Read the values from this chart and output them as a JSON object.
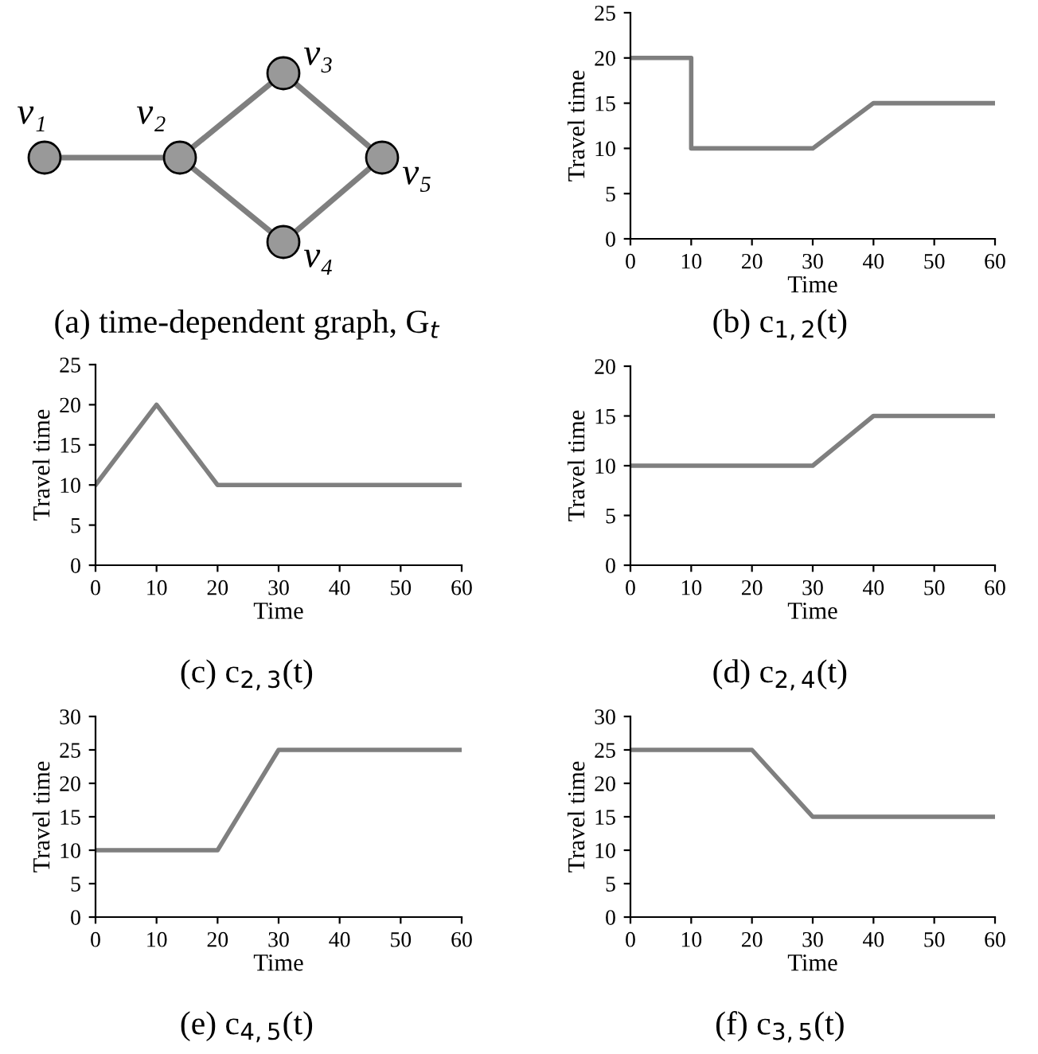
{
  "chart_data": [
    {
      "type": "other",
      "title": "(a) time-dependent graph, G$_{t}$",
      "annotations": [
        "v₁",
        "v₂",
        "v₃",
        "v₄",
        "v₅"
      ]
    },
    {
      "type": "line",
      "title": "(b) c$_{1,2}$(t)",
      "xlabel": "Time",
      "ylabel": "Travel time",
      "xlim": [
        0,
        60
      ],
      "xticks": [
        0,
        10,
        20,
        30,
        40,
        50,
        60
      ],
      "ylim": [
        0,
        25
      ],
      "yticks": [
        0,
        5,
        10,
        15,
        20,
        25
      ],
      "series": [
        {
          "color": "#7f7f7f",
          "x": [
            0,
            10,
            10,
            30,
            40,
            60
          ],
          "values": [
            20,
            20,
            10,
            10,
            15,
            15
          ]
        }
      ]
    },
    {
      "type": "line",
      "title": "(c) c$_{2,3}$(t)",
      "xlabel": "Time",
      "ylabel": "Travel time",
      "xlim": [
        0,
        60
      ],
      "xticks": [
        0,
        10,
        20,
        30,
        40,
        50,
        60
      ],
      "ylim": [
        0,
        25
      ],
      "yticks": [
        0,
        5,
        10,
        15,
        20,
        25
      ],
      "series": [
        {
          "color": "#7f7f7f",
          "x": [
            0,
            10,
            20,
            60
          ],
          "values": [
            10,
            20,
            10,
            10
          ]
        }
      ]
    },
    {
      "type": "line",
      "title": "(d) c$_{2,4}$(t)",
      "xlabel": "Time",
      "ylabel": "Travel time",
      "xlim": [
        0,
        60
      ],
      "xticks": [
        0,
        10,
        20,
        30,
        40,
        50,
        60
      ],
      "ylim": [
        0,
        20
      ],
      "yticks": [
        0,
        5,
        10,
        15,
        20
      ],
      "series": [
        {
          "color": "#7f7f7f",
          "x": [
            0,
            30,
            40,
            60
          ],
          "values": [
            10,
            10,
            15,
            15
          ]
        }
      ]
    },
    {
      "type": "line",
      "title": "(e) c$_{4,5}$(t)",
      "xlabel": "Time",
      "ylabel": "Travel time",
      "xlim": [
        0,
        60
      ],
      "xticks": [
        0,
        10,
        20,
        30,
        40,
        50,
        60
      ],
      "ylim": [
        0,
        30
      ],
      "yticks": [
        0,
        5,
        10,
        15,
        20,
        25,
        30
      ],
      "series": [
        {
          "color": "#7f7f7f",
          "x": [
            0,
            20,
            30,
            60
          ],
          "values": [
            10,
            10,
            25,
            25
          ]
        }
      ]
    },
    {
      "type": "line",
      "title": "(f) c$_{3,5}$(t)",
      "xlabel": "Time",
      "ylabel": "Travel time",
      "xlim": [
        0,
        60
      ],
      "xticks": [
        0,
        10,
        20,
        30,
        40,
        50,
        60
      ],
      "ylim": [
        0,
        30
      ],
      "yticks": [
        0,
        5,
        10,
        15,
        20,
        25,
        30
      ],
      "series": [
        {
          "color": "#7f7f7f",
          "x": [
            0,
            20,
            30,
            60
          ],
          "values": [
            25,
            25,
            15,
            15
          ]
        }
      ]
    }
  ]
}
